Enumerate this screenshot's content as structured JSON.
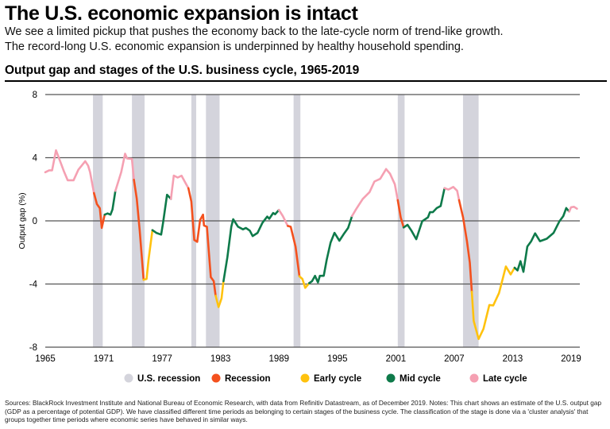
{
  "header": {
    "title": "The U.S. economic expansion is intact",
    "subtitle_lines": [
      "We see a limited pickup that pushes the economy back to the late-cycle norm of trend-like growth.",
      "The record-long U.S. economic expansion is underpinned by healthy household spending."
    ]
  },
  "sources": "Sources: BlackRock Investment Institute and National Bureau of Economic Research, with data from Refinitiv Datastream, as of December 2019. Notes: This chart shows an estimate of the U.S. output gap (GDP as a percentage of potential GDP). We have classified different time periods as belonging to certain stages of the business cycle. The classification of the stage is done via a 'cluster analysis' that groups together time periods where economic series have behaved in similar ways.",
  "chart_data": {
    "type": "line",
    "title": "Output gap and stages of the U.S. business cycle, 1965-2019",
    "ylabel": "Output gap (%)",
    "xlabel": "",
    "xlim": [
      1965,
      2019.6
    ],
    "ylim": [
      -8,
      8
    ],
    "x_ticks": [
      "1965",
      "1971",
      "1977",
      "1983",
      "1989",
      "1995",
      "2001",
      "2007",
      "2013",
      "2019"
    ],
    "y_ticks": [
      "8",
      "4",
      "0",
      "-4",
      "-8"
    ],
    "grid": true,
    "legend_position": "bottom",
    "legend": [
      {
        "key": "recession_band",
        "label": "U.S. recession",
        "color": "#d4d4dc"
      },
      {
        "key": "recession",
        "label": "Recession",
        "color": "#f4511e"
      },
      {
        "key": "early",
        "label": "Early cycle",
        "color": "#ffc20e"
      },
      {
        "key": "mid",
        "label": "Mid cycle",
        "color": "#0e7a4a"
      },
      {
        "key": "late",
        "label": "Late cycle",
        "color": "#f5a0b2"
      }
    ],
    "recessions": [
      [
        1969.9,
        1970.9
      ],
      [
        1973.9,
        1975.2
      ],
      [
        1980.0,
        1980.5
      ],
      [
        1981.5,
        1982.9
      ],
      [
        1990.5,
        1991.2
      ],
      [
        2001.2,
        2001.9
      ],
      [
        2007.9,
        2009.5
      ]
    ],
    "segments": [
      {
        "stage": "late",
        "points": [
          [
            1965.0,
            3.08
          ],
          [
            1965.4,
            3.2
          ],
          [
            1965.7,
            3.2
          ],
          [
            1966.1,
            4.47
          ],
          [
            1966.6,
            3.66
          ],
          [
            1966.9,
            3.16
          ],
          [
            1967.3,
            2.57
          ],
          [
            1967.9,
            2.57
          ],
          [
            1968.4,
            3.24
          ],
          [
            1969.1,
            3.78
          ],
          [
            1969.4,
            3.5
          ],
          [
            1969.6,
            3.08
          ],
          [
            1970.0,
            1.76
          ]
        ]
      },
      {
        "stage": "recession",
        "points": [
          [
            1970.0,
            1.76
          ],
          [
            1970.3,
            1.06
          ],
          [
            1970.6,
            0.8
          ],
          [
            1970.8,
            -0.45
          ],
          [
            1971.1,
            0.39
          ]
        ]
      },
      {
        "stage": "mid",
        "points": [
          [
            1971.1,
            0.39
          ],
          [
            1971.4,
            0.47
          ],
          [
            1971.7,
            0.39
          ],
          [
            1971.9,
            0.72
          ],
          [
            1972.2,
            1.9
          ]
        ]
      },
      {
        "stage": "late",
        "points": [
          [
            1972.2,
            1.9
          ],
          [
            1972.8,
            3.08
          ],
          [
            1973.2,
            4.25
          ],
          [
            1973.4,
            3.95
          ],
          [
            1973.9,
            3.92
          ],
          [
            1974.1,
            2.6
          ]
        ]
      },
      {
        "stage": "recession",
        "points": [
          [
            1974.1,
            2.6
          ],
          [
            1974.4,
            1.4
          ],
          [
            1974.7,
            -0.62
          ],
          [
            1975.1,
            -3.73
          ]
        ]
      },
      {
        "stage": "early",
        "points": [
          [
            1975.1,
            -3.73
          ],
          [
            1975.4,
            -3.68
          ],
          [
            1975.6,
            -2.47
          ],
          [
            1976.0,
            -0.59
          ]
        ]
      },
      {
        "stage": "mid",
        "points": [
          [
            1976.0,
            -0.59
          ],
          [
            1976.4,
            -0.76
          ],
          [
            1976.9,
            -0.87
          ],
          [
            1977.1,
            -0.12
          ],
          [
            1977.5,
            1.65
          ],
          [
            1977.9,
            1.39
          ]
        ]
      },
      {
        "stage": "late",
        "points": [
          [
            1977.9,
            1.39
          ],
          [
            1978.2,
            2.87
          ],
          [
            1978.6,
            2.74
          ],
          [
            1979.0,
            2.86
          ],
          [
            1979.4,
            2.4
          ],
          [
            1979.7,
            2.07
          ]
        ]
      },
      {
        "stage": "recession",
        "points": [
          [
            1979.7,
            2.07
          ],
          [
            1980.0,
            1.23
          ],
          [
            1980.3,
            -1.21
          ],
          [
            1980.6,
            -1.33
          ],
          [
            1980.9,
            0.05
          ],
          [
            1981.2,
            0.39
          ],
          [
            1981.3,
            -0.29
          ],
          [
            1981.6,
            -0.37
          ],
          [
            1982.0,
            -3.56
          ],
          [
            1982.3,
            -3.82
          ],
          [
            1982.5,
            -4.74
          ]
        ]
      },
      {
        "stage": "early",
        "points": [
          [
            1982.5,
            -4.74
          ],
          [
            1982.8,
            -5.46
          ],
          [
            1983.1,
            -4.91
          ],
          [
            1983.3,
            -3.82
          ]
        ]
      },
      {
        "stage": "mid",
        "points": [
          [
            1983.3,
            -3.82
          ],
          [
            1983.7,
            -2.3
          ],
          [
            1984.1,
            -0.37
          ],
          [
            1984.3,
            0.1
          ],
          [
            1984.8,
            -0.37
          ],
          [
            1985.3,
            -0.54
          ],
          [
            1985.6,
            -0.45
          ],
          [
            1986.0,
            -0.62
          ],
          [
            1986.3,
            -0.96
          ],
          [
            1986.8,
            -0.76
          ],
          [
            1987.3,
            -0.12
          ],
          [
            1987.8,
            0.27
          ],
          [
            1988.0,
            0.13
          ],
          [
            1988.4,
            0.5
          ],
          [
            1988.6,
            0.42
          ],
          [
            1989.0,
            0.69
          ]
        ]
      },
      {
        "stage": "late",
        "points": [
          [
            1989.0,
            0.69
          ],
          [
            1989.4,
            0.3
          ],
          [
            1989.9,
            -0.32
          ]
        ]
      },
      {
        "stage": "recession",
        "points": [
          [
            1989.9,
            -0.32
          ],
          [
            1990.2,
            -0.37
          ],
          [
            1990.7,
            -1.63
          ],
          [
            1991.1,
            -3.51
          ]
        ]
      },
      {
        "stage": "early",
        "points": [
          [
            1991.1,
            -3.51
          ],
          [
            1991.4,
            -3.68
          ],
          [
            1991.7,
            -4.24
          ],
          [
            1992.1,
            -3.95
          ]
        ]
      },
      {
        "stage": "mid",
        "points": [
          [
            1992.1,
            -3.95
          ],
          [
            1992.4,
            -3.82
          ],
          [
            1992.7,
            -3.48
          ],
          [
            1993.0,
            -3.9
          ],
          [
            1993.2,
            -3.48
          ],
          [
            1993.6,
            -3.48
          ],
          [
            1993.9,
            -2.47
          ],
          [
            1994.3,
            -1.38
          ],
          [
            1994.7,
            -0.76
          ],
          [
            1995.2,
            -1.26
          ],
          [
            1995.7,
            -0.79
          ],
          [
            1996.1,
            -0.45
          ],
          [
            1996.5,
            0.3
          ]
        ]
      },
      {
        "stage": "late",
        "points": [
          [
            1996.5,
            0.3
          ],
          [
            1996.9,
            0.72
          ],
          [
            1997.6,
            1.39
          ],
          [
            1998.3,
            1.82
          ],
          [
            1998.8,
            2.49
          ],
          [
            1999.4,
            2.66
          ],
          [
            2000.0,
            3.28
          ],
          [
            2000.4,
            2.99
          ],
          [
            2000.9,
            2.32
          ],
          [
            2001.2,
            1.31
          ]
        ]
      },
      {
        "stage": "recession",
        "points": [
          [
            2001.2,
            1.31
          ],
          [
            2001.5,
            0.22
          ],
          [
            2001.8,
            -0.42
          ]
        ]
      },
      {
        "stage": "mid",
        "points": [
          [
            2001.8,
            -0.42
          ],
          [
            2002.2,
            -0.25
          ],
          [
            2002.6,
            -0.62
          ],
          [
            2003.1,
            -1.16
          ],
          [
            2003.7,
            -0.03
          ],
          [
            2004.3,
            0.22
          ],
          [
            2004.5,
            0.55
          ],
          [
            2004.8,
            0.55
          ],
          [
            2005.2,
            0.81
          ],
          [
            2005.6,
            0.94
          ],
          [
            2006.0,
            2.07
          ]
        ]
      },
      {
        "stage": "late",
        "points": [
          [
            2006.0,
            2.07
          ],
          [
            2006.4,
            1.98
          ],
          [
            2006.9,
            2.15
          ],
          [
            2007.3,
            1.9
          ],
          [
            2007.5,
            1.31
          ]
        ]
      },
      {
        "stage": "recession",
        "points": [
          [
            2007.5,
            1.31
          ],
          [
            2007.9,
            0.22
          ],
          [
            2008.3,
            -1.29
          ],
          [
            2008.6,
            -2.64
          ],
          [
            2008.8,
            -4.49
          ]
        ]
      },
      {
        "stage": "early",
        "points": [
          [
            2008.8,
            -4.49
          ],
          [
            2009.0,
            -6.34
          ],
          [
            2009.5,
            -7.48
          ],
          [
            2010.0,
            -6.84
          ],
          [
            2010.6,
            -5.33
          ],
          [
            2011.0,
            -5.36
          ],
          [
            2011.6,
            -4.57
          ],
          [
            2012.3,
            -2.89
          ],
          [
            2012.8,
            -3.39
          ],
          [
            2013.2,
            -2.97
          ]
        ]
      },
      {
        "stage": "mid",
        "points": [
          [
            2013.2,
            -2.97
          ],
          [
            2013.5,
            -3.14
          ],
          [
            2013.8,
            -2.55
          ],
          [
            2014.1,
            -3.23
          ],
          [
            2014.5,
            -1.63
          ],
          [
            2014.9,
            -1.29
          ],
          [
            2015.3,
            -0.79
          ],
          [
            2015.8,
            -1.29
          ],
          [
            2016.5,
            -1.13
          ],
          [
            2017.2,
            -0.76
          ],
          [
            2017.8,
            -0.03
          ],
          [
            2018.2,
            0.3
          ],
          [
            2018.5,
            0.81
          ],
          [
            2018.8,
            0.59
          ]
        ]
      },
      {
        "stage": "late",
        "points": [
          [
            2018.8,
            0.59
          ],
          [
            2019.0,
            0.86
          ],
          [
            2019.3,
            0.89
          ],
          [
            2019.6,
            0.77
          ]
        ]
      }
    ]
  }
}
